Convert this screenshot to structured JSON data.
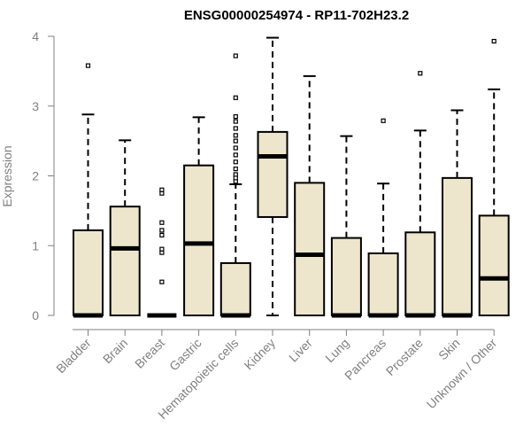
{
  "chart_data": {
    "type": "boxplot",
    "title": "ENSG00000254974 - RP11-702H23.2",
    "xlabel": "",
    "ylabel": "Expression",
    "ylim": [
      0,
      4
    ],
    "yticks": [
      "0",
      "1",
      "2",
      "3",
      "4"
    ],
    "grid": false,
    "colors": {
      "box_fill": "#ede6cc",
      "stroke": "#000000",
      "axis": "#808080"
    },
    "categories": [
      "Bladder",
      "Brain",
      "Breast",
      "Gastric",
      "Hematopoietic cells",
      "Kidney",
      "Liver",
      "Lung",
      "Pancreas",
      "Prostate",
      "Skin",
      "Unknown / Other"
    ],
    "boxes": [
      {
        "q1": 0,
        "median": 0,
        "q3": 1.22,
        "whisker_low": 0,
        "whisker_high": 2.88,
        "outliers": [
          3.58
        ]
      },
      {
        "q1": 0,
        "median": 0.96,
        "q3": 1.56,
        "whisker_low": 0,
        "whisker_high": 2.51,
        "outliers": []
      },
      {
        "q1": 0,
        "median": 0,
        "q3": 0,
        "whisker_low": 0,
        "whisker_high": 0,
        "outliers": [
          0.48,
          0.9,
          0.95,
          1.15,
          1.22,
          1.33,
          1.75,
          1.8
        ]
      },
      {
        "q1": 0,
        "median": 1.03,
        "q3": 2.15,
        "whisker_low": 0,
        "whisker_high": 2.84,
        "outliers": []
      },
      {
        "q1": 0,
        "median": 0,
        "q3": 0.75,
        "whisker_low": 0,
        "whisker_high": 1.88,
        "outliers": [
          1.92,
          1.97,
          2.02,
          2.1,
          2.2,
          2.3,
          2.4,
          2.5,
          2.58,
          2.68,
          2.78,
          2.85,
          3.12,
          3.72
        ]
      },
      {
        "q1": 1.41,
        "median": 2.28,
        "q3": 2.63,
        "whisker_low": 0,
        "whisker_high": 3.98,
        "outliers": []
      },
      {
        "q1": 0,
        "median": 0.87,
        "q3": 1.9,
        "whisker_low": 0,
        "whisker_high": 3.43,
        "outliers": []
      },
      {
        "q1": 0,
        "median": 0,
        "q3": 1.11,
        "whisker_low": 0,
        "whisker_high": 2.57,
        "outliers": []
      },
      {
        "q1": 0,
        "median": 0,
        "q3": 0.89,
        "whisker_low": 0,
        "whisker_high": 1.89,
        "outliers": [
          2.79
        ]
      },
      {
        "q1": 0,
        "median": 0,
        "q3": 1.19,
        "whisker_low": 0,
        "whisker_high": 2.65,
        "outliers": [
          3.47
        ]
      },
      {
        "q1": 0,
        "median": 0,
        "q3": 1.97,
        "whisker_low": 0,
        "whisker_high": 2.94,
        "outliers": []
      },
      {
        "q1": 0,
        "median": 0.53,
        "q3": 1.43,
        "whisker_low": 0,
        "whisker_high": 3.24,
        "outliers": [
          3.93
        ]
      }
    ]
  }
}
